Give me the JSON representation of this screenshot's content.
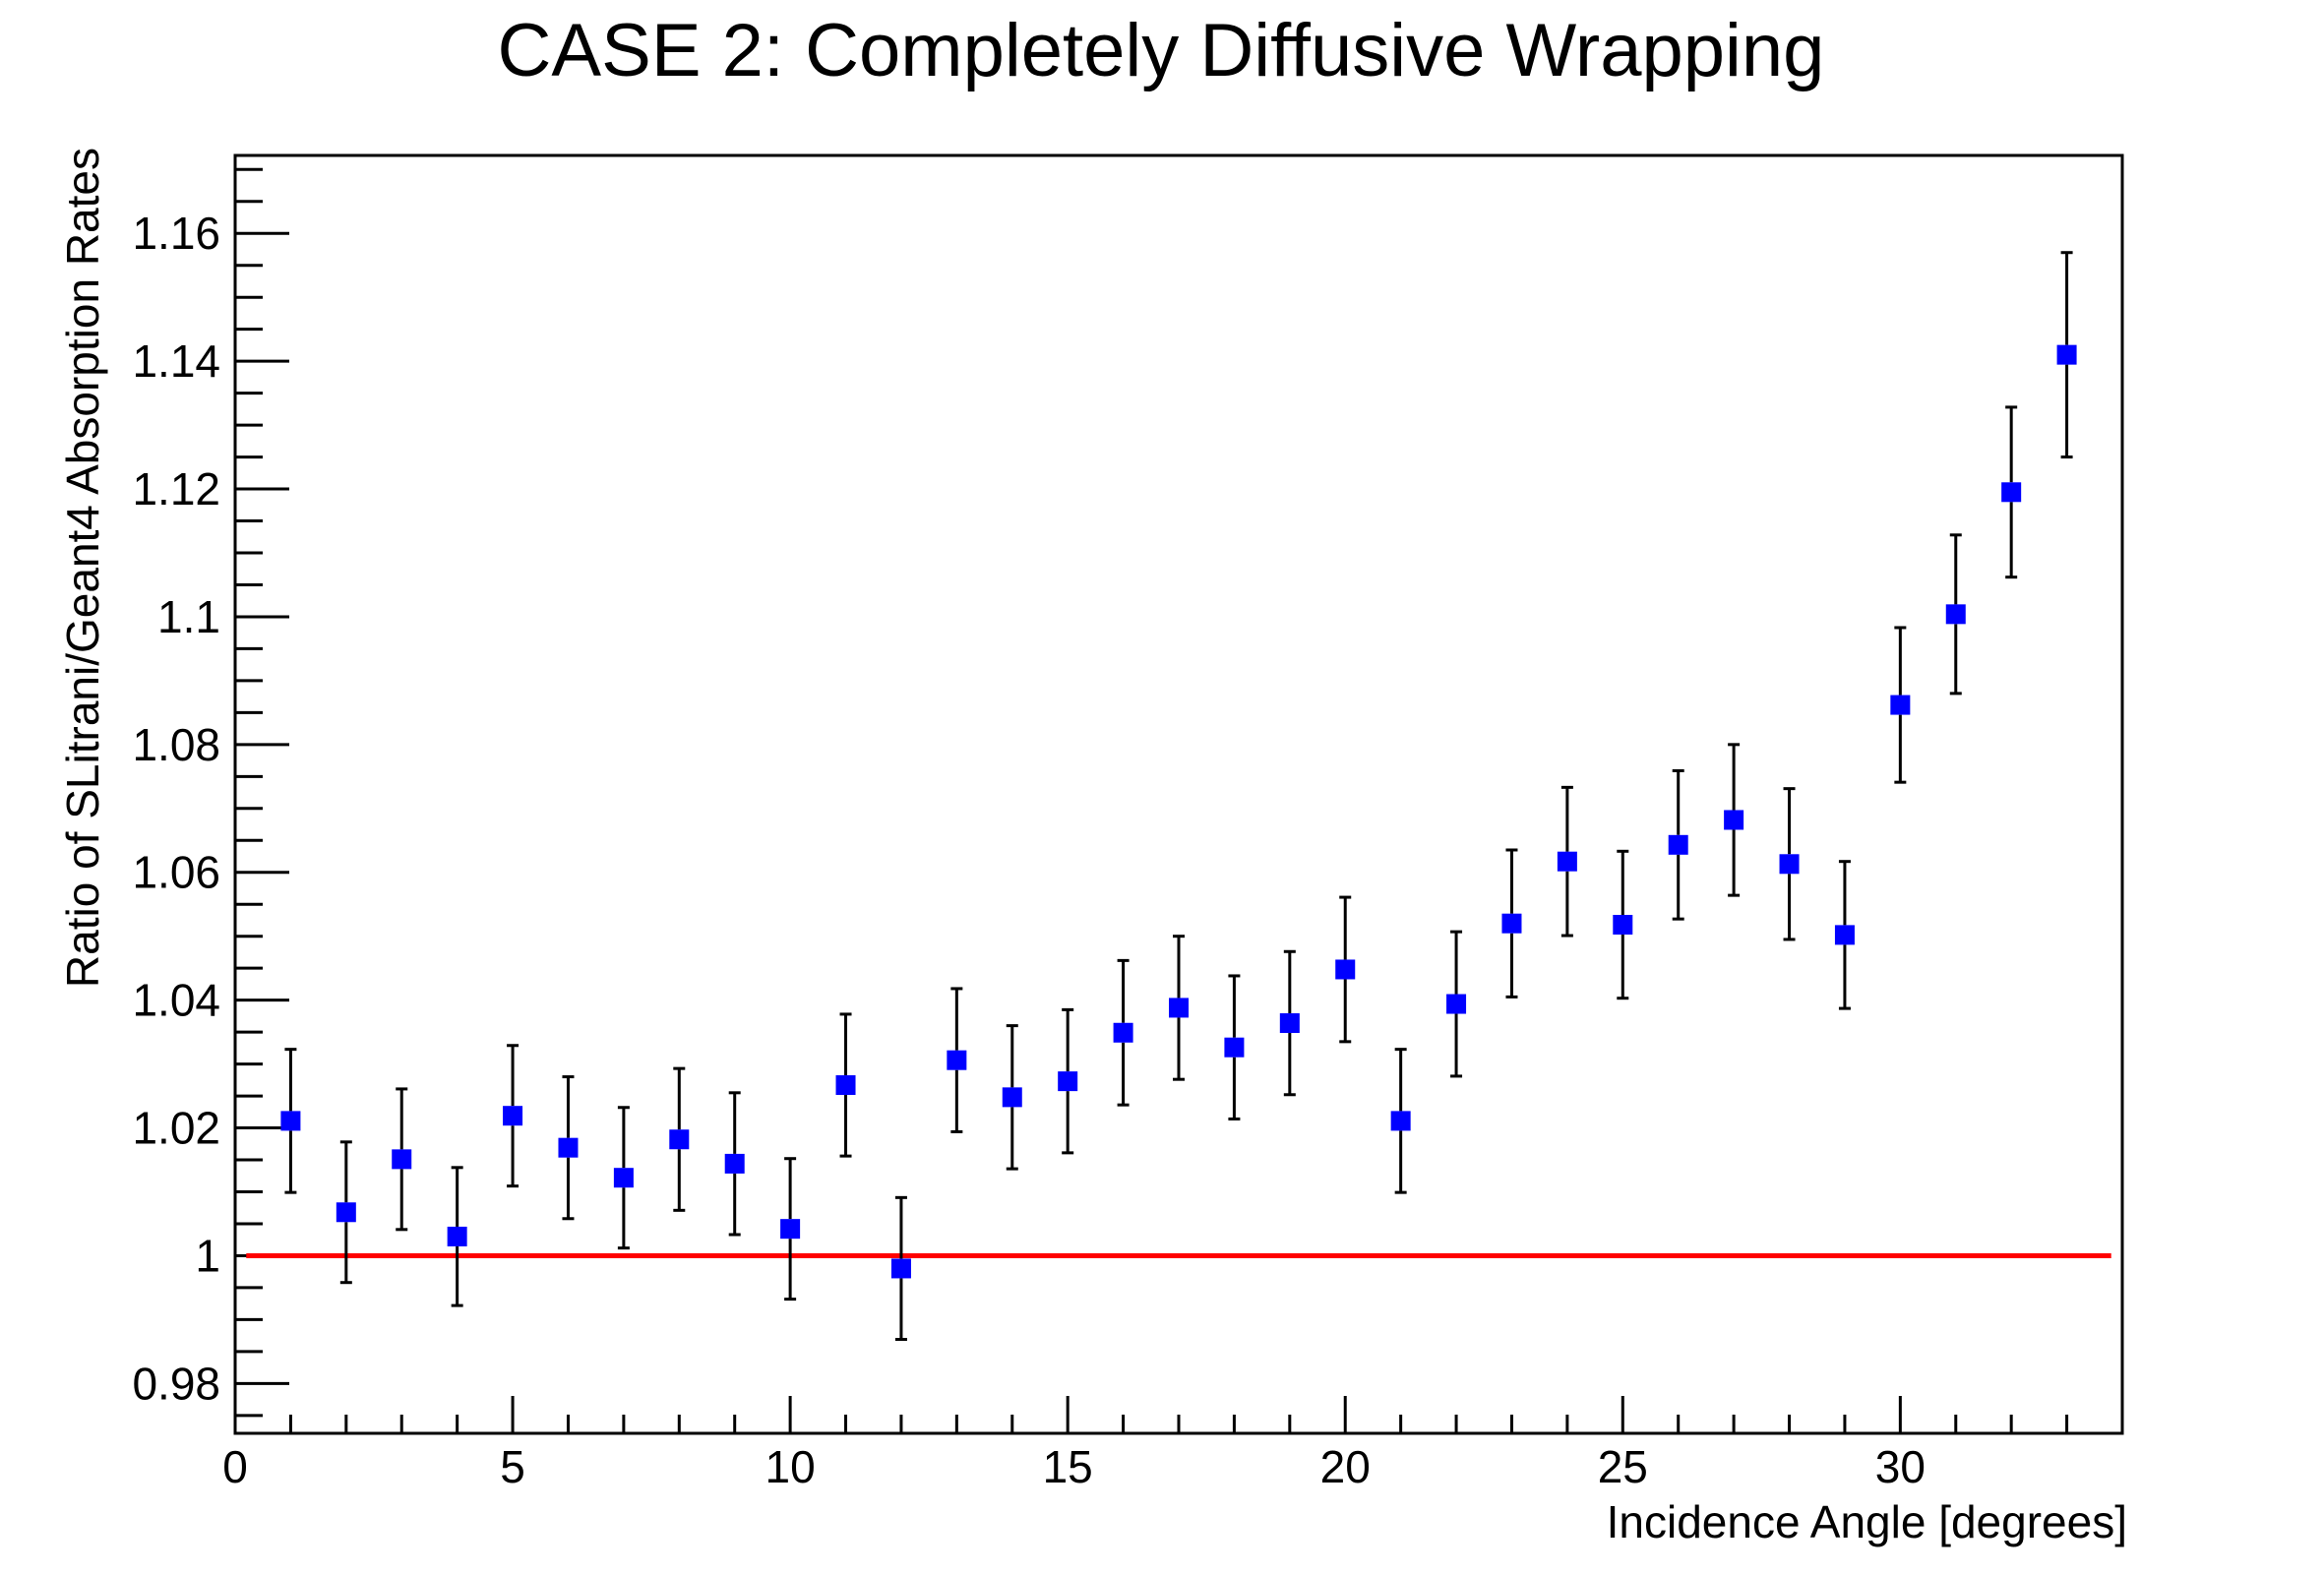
{
  "chart_data": {
    "type": "scatter",
    "title": "CASE 2: Completely Diffusive Wrapping",
    "xlabel": "Incidence Angle [degrees]",
    "ylabel": "Ratio of SLitrani/Geant4 Absorption Rates",
    "xlim": [
      0,
      34
    ],
    "ylim": [
      0.9722,
      1.1722
    ],
    "x_ticks": [
      0,
      5,
      10,
      15,
      20,
      25,
      30
    ],
    "x_tick_labels": [
      "0",
      "5",
      "10",
      "15",
      "20",
      "25",
      "30"
    ],
    "y_ticks": [
      0.98,
      1.0,
      1.02,
      1.04,
      1.06,
      1.08,
      1.1,
      1.12,
      1.14,
      1.16
    ],
    "y_tick_labels": [
      "0.98",
      "1",
      "1.02",
      "1.04",
      "1.06",
      "1.08",
      "1.1",
      "1.12",
      "1.14",
      "1.16"
    ],
    "grid": false,
    "legend": "none",
    "marker_color": "#0000ff",
    "error_bar_color": "#000000",
    "reference_line": {
      "y": 1.0,
      "x_start": 0.2,
      "x_end": 33.8,
      "color": "#ff0000"
    },
    "series": [
      {
        "x": [
          1,
          2,
          3,
          4,
          5,
          6,
          7,
          8,
          9,
          10,
          11,
          12,
          13,
          14,
          15,
          16,
          17,
          18,
          19,
          20,
          21,
          22,
          23,
          24,
          25,
          26,
          27,
          28,
          29,
          30,
          31,
          32,
          33
        ],
        "y": [
          1.0211,
          1.0068,
          1.0151,
          1.003,
          1.0219,
          1.0169,
          1.0122,
          1.0182,
          1.0144,
          1.0042,
          1.0267,
          0.998,
          1.0306,
          1.0248,
          1.0273,
          1.0349,
          1.0388,
          1.0326,
          1.0364,
          1.0448,
          1.0211,
          1.0394,
          1.052,
          1.0617,
          1.0518,
          1.0643,
          1.0682,
          1.0613,
          1.0502,
          1.0862,
          1.1004,
          1.1195,
          1.141
        ],
        "err": [
          0.0112,
          0.011,
          0.011,
          0.0108,
          0.011,
          0.0111,
          0.011,
          0.0111,
          0.0111,
          0.011,
          0.0111,
          0.0111,
          0.0112,
          0.0112,
          0.0112,
          0.0113,
          0.0112,
          0.0112,
          0.0112,
          0.0113,
          0.0112,
          0.0113,
          0.0115,
          0.0116,
          0.0115,
          0.0116,
          0.0118,
          0.0118,
          0.0115,
          0.0121,
          0.0124,
          0.0133,
          0.016
        ]
      }
    ]
  }
}
